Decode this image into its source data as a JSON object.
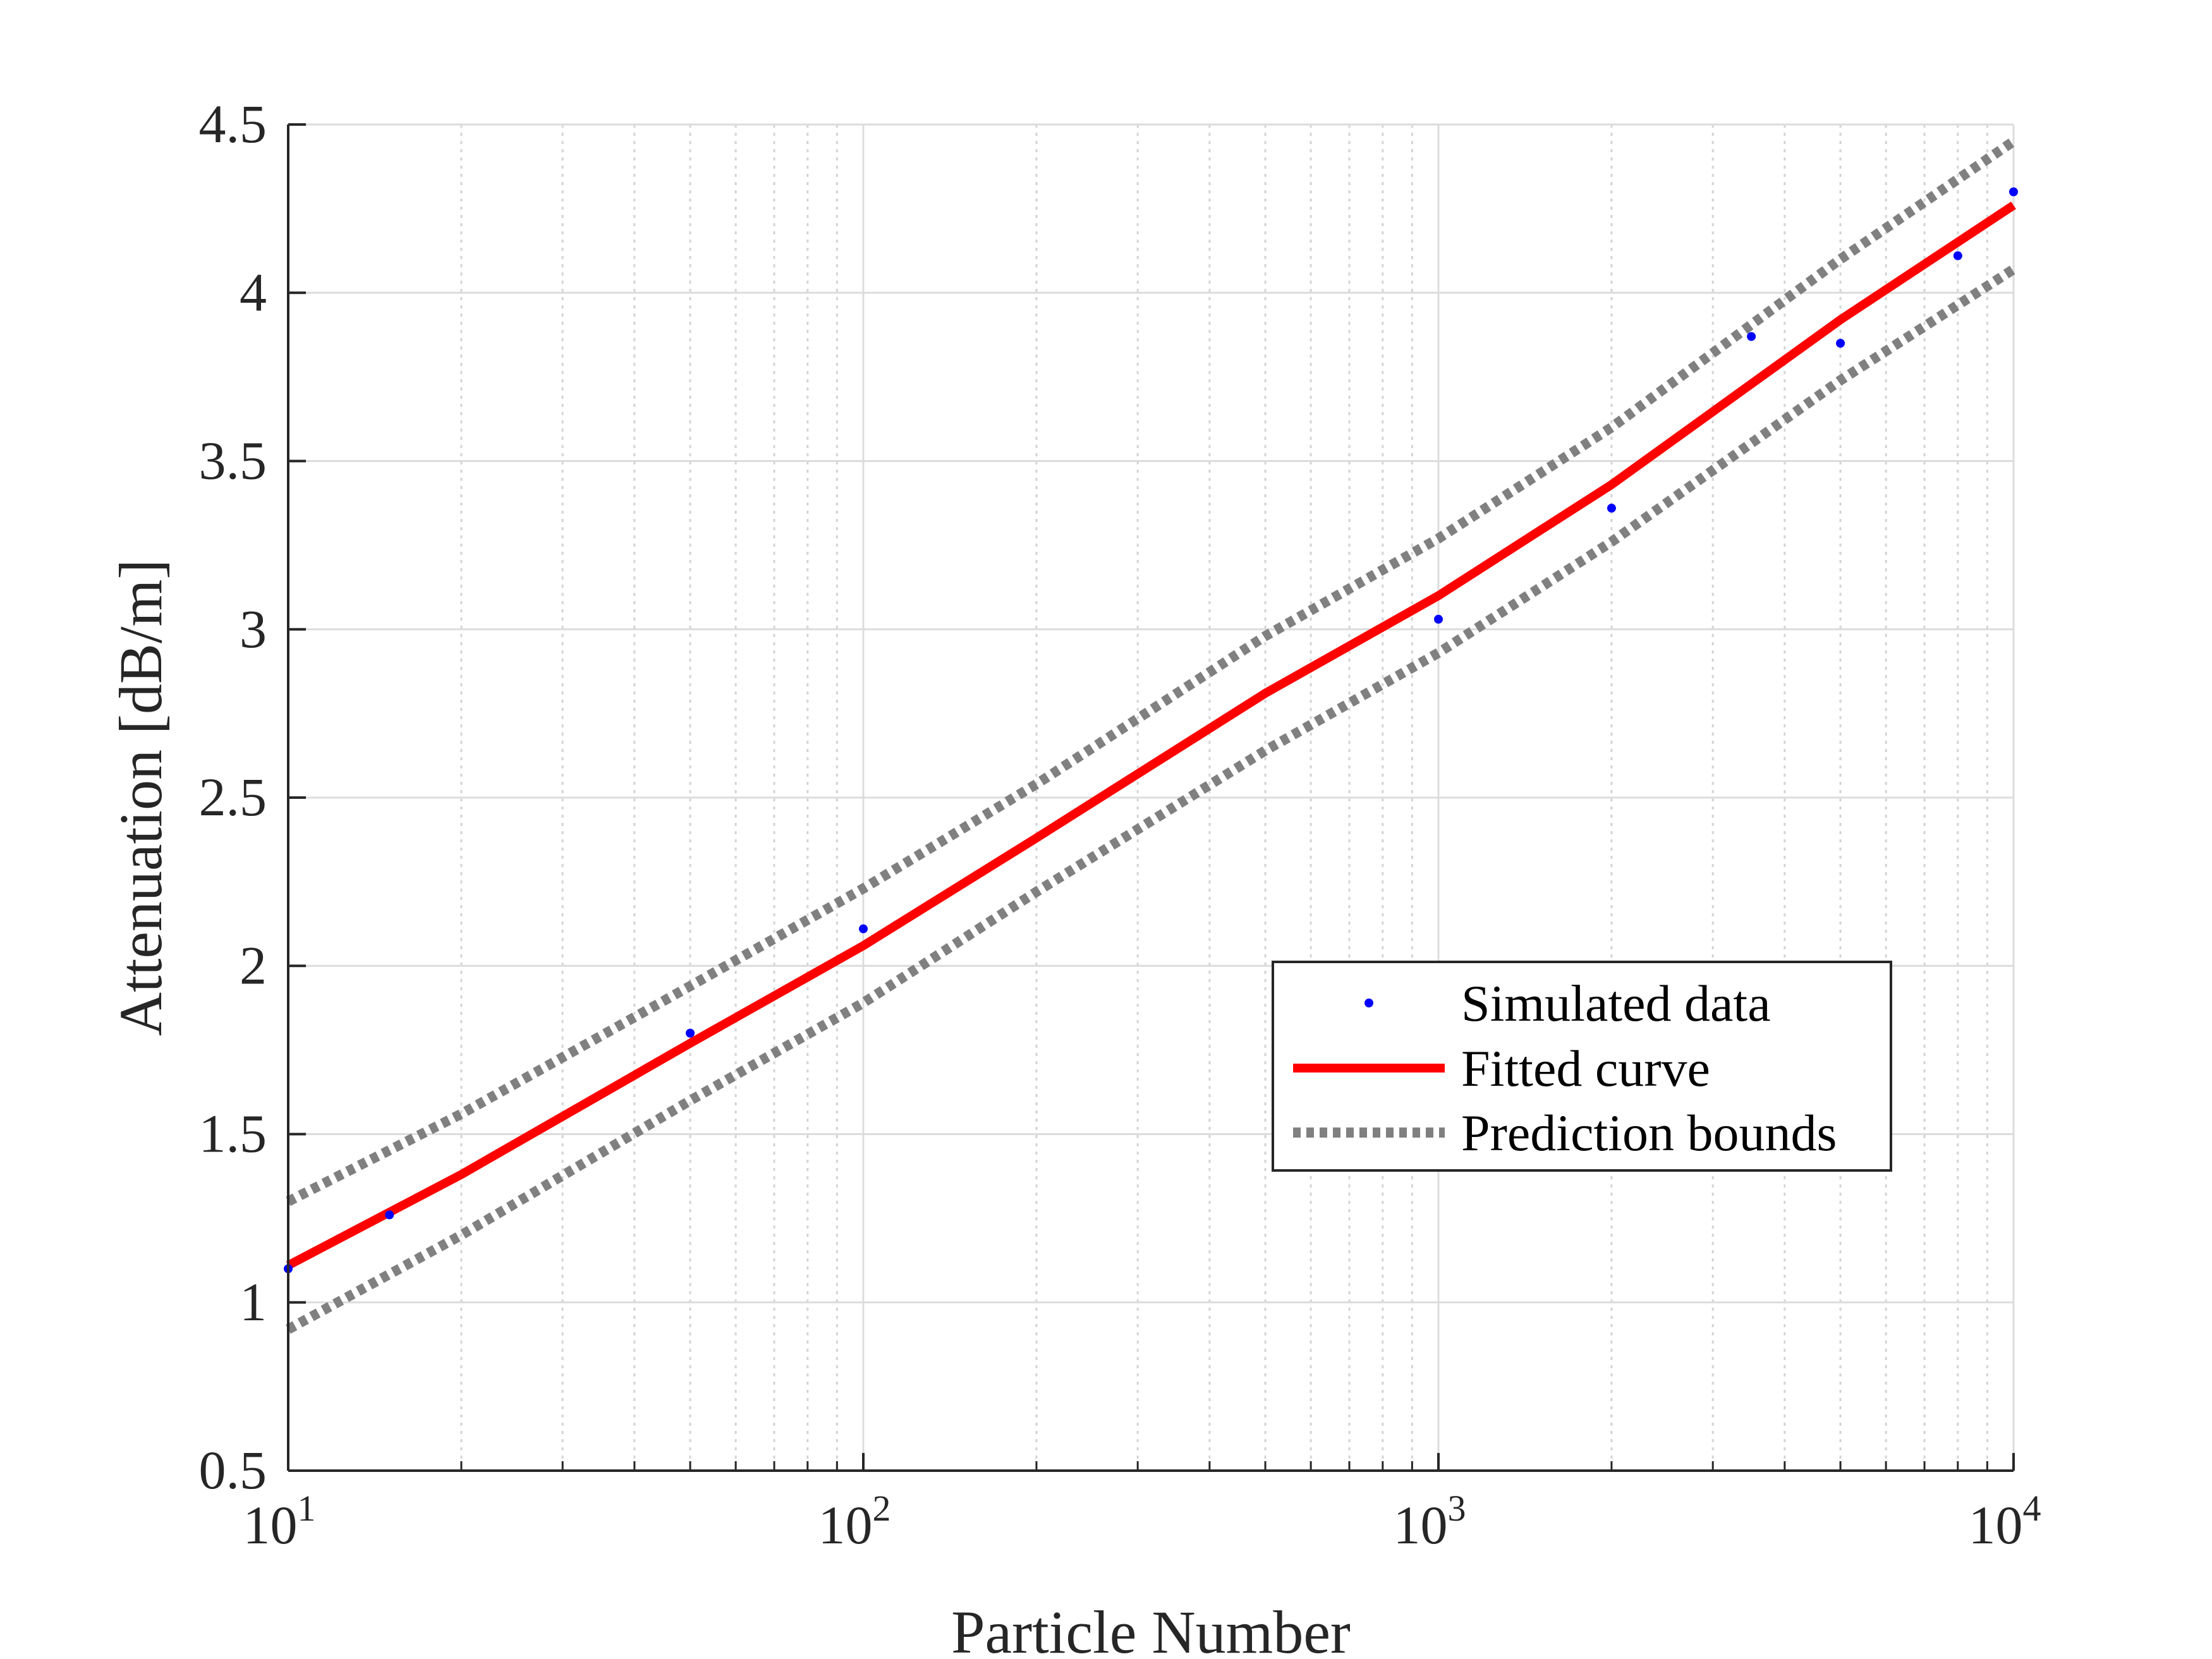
{
  "chart_data": {
    "type": "scatter",
    "title": "",
    "xlabel": "Particle Number",
    "ylabel": "Attenuation [dB/m]",
    "xscale": "log",
    "xlim": [
      10,
      10000
    ],
    "ylim": [
      0.5,
      4.5
    ],
    "grid": true,
    "minor_grid": true,
    "x_ticks": [
      {
        "base": "10",
        "exp": "1"
      },
      {
        "base": "10",
        "exp": "2"
      },
      {
        "base": "10",
        "exp": "3"
      },
      {
        "base": "10",
        "exp": "4"
      }
    ],
    "y_ticks": [
      "0.5",
      "1",
      "1.5",
      "2",
      "2.5",
      "3",
      "3.5",
      "4",
      "4.5"
    ],
    "legend": {
      "position": "lower-right",
      "entries": [
        "Simulated data",
        "Fitted curve",
        "Prediction bounds"
      ]
    },
    "series": [
      {
        "name": "Simulated data",
        "kind": "points",
        "color": "#0000ff",
        "x": [
          10,
          15,
          50,
          100,
          1000,
          2000,
          3500,
          5000,
          8000,
          10000
        ],
        "y": [
          1.1,
          1.26,
          1.8,
          2.11,
          3.03,
          3.36,
          3.87,
          3.85,
          4.11,
          4.3
        ]
      },
      {
        "name": "Fitted curve",
        "kind": "line",
        "color": "#ff0000",
        "x": [
          10,
          20,
          50,
          100,
          200,
          500,
          1000,
          2000,
          5000,
          10000
        ],
        "y": [
          1.11,
          1.38,
          1.77,
          2.06,
          2.38,
          2.81,
          3.1,
          3.43,
          3.92,
          4.26
        ]
      },
      {
        "name": "Prediction bounds",
        "kind": "band",
        "color": "#808080",
        "x": [
          10,
          20,
          50,
          100,
          200,
          500,
          1000,
          2000,
          5000,
          10000
        ],
        "upper": [
          1.3,
          1.56,
          1.94,
          2.23,
          2.54,
          2.98,
          3.27,
          3.6,
          4.1,
          4.45
        ],
        "lower": [
          0.92,
          1.2,
          1.6,
          1.89,
          2.22,
          2.64,
          2.93,
          3.26,
          3.74,
          4.07
        ]
      }
    ]
  }
}
